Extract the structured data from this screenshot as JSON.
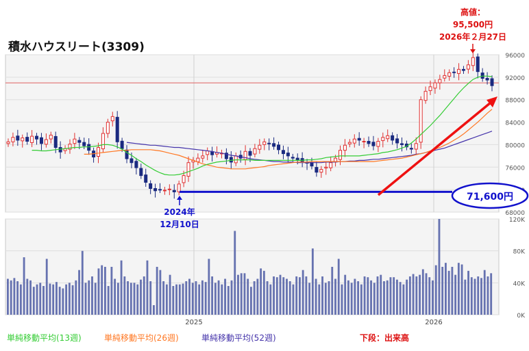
{
  "title": "積水ハウスリート(3309)",
  "high_note": {
    "line1": "高値：",
    "line2": "95,500円",
    "line3": "2026年２月27日"
  },
  "low_note": {
    "line1": "2024年",
    "line2": "12月10日"
  },
  "callout_value": "71,600円",
  "x_ticks": [
    "2025",
    "2026"
  ],
  "legend": {
    "sma13": "単純移動平均(13週)",
    "sma26": "単純移動平均(26週)",
    "sma52": "単純移動平均(52週)",
    "lower_note": "下段：出来高"
  },
  "colors": {
    "up": "#e03030",
    "down": "#1a2a80",
    "sma13": "#33cc33",
    "sma26": "#ff7722",
    "sma52": "#4433aa",
    "volume": "#6672b0",
    "callout": "#1111cc",
    "arrow": "#ee1111",
    "hline": "#e06060"
  },
  "chart_data": [
    {
      "type": "candlestick",
      "title": "積水ハウスリート(3309)",
      "ylim": [
        68000,
        96000
      ],
      "y_ticks": [
        "96000",
        "92000",
        "88000",
        "84000",
        "80000",
        "76000",
        "72000",
        "68000"
      ],
      "x_ticks": [
        "2025",
        "2026"
      ],
      "reference_line": 91000,
      "low_mark": 71600,
      "high_mark": 95500,
      "weekly_close": [
        80500,
        81300,
        80800,
        81200,
        80600,
        81500,
        81000,
        80200,
        80900,
        81700,
        79500,
        78700,
        79300,
        80100,
        81000,
        80400,
        79800,
        79000,
        77800,
        79500,
        82000,
        84000,
        85000,
        80500,
        79300,
        77500,
        76800,
        75900,
        74500,
        73300,
        72200,
        71800,
        72000,
        71900,
        72100,
        71600,
        73000,
        74500,
        76800,
        77200,
        77600,
        78000,
        78900,
        78200,
        78600,
        78500,
        77500,
        76900,
        78000,
        77600,
        78800,
        78100,
        79300,
        79900,
        80500,
        80200,
        79700,
        79100,
        78400,
        78000,
        77600,
        77300,
        77000,
        76700,
        76200,
        75100,
        75600,
        76000,
        76800,
        77600,
        79000,
        79900,
        80400,
        81000,
        80800,
        80600,
        80200,
        79800,
        80600,
        81300,
        81600,
        80800,
        80300,
        80000,
        79600,
        79200,
        80200,
        88000,
        89500,
        90300,
        91000,
        91600,
        92300,
        92800,
        92900,
        93400,
        93200,
        94200,
        95500,
        93000,
        91800,
        91500,
        90500
      ],
      "sma13": [
        79000,
        79000,
        78900,
        78900,
        79000,
        79100,
        79200,
        79300,
        79400,
        79500,
        79500,
        79600,
        79600,
        79700,
        79800,
        80000,
        80000,
        79900,
        79600,
        79200,
        78600,
        78100,
        77500,
        77000,
        76400,
        75900,
        75400,
        75000,
        74700,
        74600,
        74600,
        74700,
        74900,
        75200,
        75500,
        75800,
        76200,
        76500,
        76700,
        76900,
        77000,
        77100,
        77200,
        77300,
        77300,
        77300,
        77300,
        77200,
        77200,
        77200,
        77200,
        77200,
        77200,
        77200,
        77200,
        77200,
        77200,
        77200,
        77300,
        77300,
        77400,
        77500,
        77700,
        77800,
        77900,
        78000,
        78000,
        78000,
        78000,
        78000,
        78100,
        78200,
        78300,
        78400,
        78600,
        78700,
        78900,
        79100,
        79400,
        79700,
        80300,
        81000,
        81800,
        82600,
        83400,
        84300,
        85200,
        86200,
        87200,
        88200,
        89200,
        90100,
        90900,
        91600,
        92000,
        92200,
        92200,
        92100
      ],
      "sma26": [
        78300,
        78300,
        78400,
        78500,
        78600,
        78700,
        78800,
        78900,
        79000,
        79000,
        79100,
        79100,
        79100,
        79100,
        79100,
        79000,
        78900,
        78700,
        78500,
        78300,
        78100,
        77800,
        77500,
        77200,
        76900,
        76600,
        76400,
        76200,
        76000,
        75900,
        75800,
        75700,
        75700,
        75700,
        75700,
        75800,
        75900,
        76000,
        76100,
        76300,
        76400,
        76500,
        76600,
        76700,
        76800,
        76900,
        76900,
        76900,
        77000,
        77000,
        77000,
        77000,
        77000,
        77000,
        77000,
        77000,
        77000,
        77000,
        77000,
        77000,
        77000,
        77000,
        77100,
        77200,
        77300,
        77400,
        77500,
        77600,
        77800,
        78000,
        78200,
        78400,
        78600,
        78900,
        79200,
        79500,
        79900,
        80300,
        80800,
        81300,
        81900,
        82600,
        83300,
        84000,
        84800,
        85600,
        86300
      ],
      "sma52": [
        80400,
        80300,
        80200,
        80100,
        80000,
        79900,
        79900,
        79800,
        79700,
        79600,
        79500,
        79500,
        79400,
        79300,
        79200,
        79100,
        79000,
        78900,
        78800,
        78600,
        78500,
        78300,
        78100,
        78000,
        77800,
        77700,
        77500,
        77400,
        77300,
        77200,
        77100,
        77000,
        77000,
        76900,
        76900,
        76900,
        76800,
        76800,
        76800,
        76800,
        76800,
        76800,
        76900,
        76900,
        76900,
        77000,
        77000,
        77100,
        77100,
        77200,
        77200,
        77300,
        77400,
        77400,
        77500,
        77600,
        77700,
        77800,
        77900,
        78000,
        78100,
        78300,
        78400,
        78600,
        78800,
        79000,
        79200,
        79400,
        79700,
        80000,
        80300,
        80600,
        80900,
        81200,
        81500,
        81800,
        82100,
        82400
      ],
      "volume_ylim": [
        0,
        120000
      ],
      "volume_ticks": [
        "120K",
        "80K",
        "40K",
        "0K"
      ],
      "volume": [
        45000,
        43000,
        46000,
        42000,
        38000,
        72000,
        45000,
        43000,
        35000,
        38000,
        40000,
        36000,
        70000,
        39000,
        38000,
        41000,
        35000,
        33000,
        38000,
        40000,
        37000,
        43000,
        56000,
        80000,
        40000,
        43000,
        48000,
        40000,
        58000,
        62000,
        60000,
        36000,
        60000,
        45000,
        40000,
        68000,
        48000,
        42000,
        40000,
        40000,
        38000,
        44000,
        48000,
        68000,
        42000,
        12000,
        60000,
        56000,
        42000,
        38000,
        50000,
        36000,
        38000,
        38000,
        39000,
        42000,
        45000,
        40000,
        42000,
        38000,
        43000,
        41000,
        70000,
        48000,
        40000,
        43000,
        38000,
        45000,
        36000,
        43000,
        105000,
        50000,
        52000,
        52000,
        45000,
        35000,
        42000,
        45000,
        58000,
        55000,
        42000,
        38000,
        48000,
        47000,
        50000,
        47000,
        45000,
        42000,
        38000,
        48000,
        47000,
        56000,
        48000,
        40000,
        83000,
        45000,
        38000,
        48000,
        40000,
        42000,
        60000,
        45000,
        70000,
        38000,
        50000,
        43000,
        40000,
        45000,
        42000,
        38000,
        48000,
        47000,
        43000,
        40000,
        48000,
        50000,
        42000,
        43000,
        47000,
        47000,
        44000,
        41000,
        38000,
        44000,
        48000,
        51000,
        48000,
        50000,
        57000,
        52000,
        47000,
        43000,
        62000,
        120000,
        60000,
        65000,
        55000,
        60000,
        50000,
        65000,
        63000,
        44000,
        55000,
        47000,
        45000,
        48000,
        46000,
        56000,
        48000,
        52000
      ]
    }
  ]
}
